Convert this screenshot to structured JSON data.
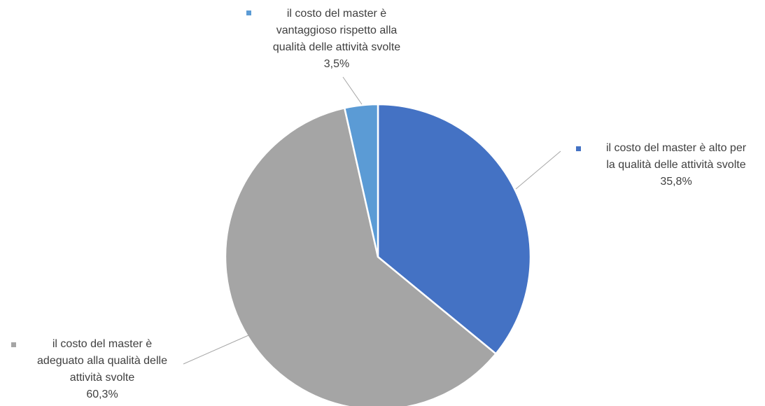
{
  "chart_data": {
    "type": "pie",
    "title": "",
    "slices": [
      {
        "label": "il costo del master è alto per la qualità delle attività svolte",
        "value": 35.8,
        "value_label": "35,8%",
        "color": "#4472C4"
      },
      {
        "label": "il costo del master è adeguato alla qualità delle attività svolte",
        "value": 60.3,
        "value_label": "60,3%",
        "color": "#A5A5A5"
      },
      {
        "label": "il costo del master è vantaggioso rispetto alla qualità delle attività svolte",
        "value": 3.5,
        "value_label": "3,5%",
        "color": "#5B9BD5"
      }
    ],
    "label_lines": [
      [
        "il costo del master è alto per",
        "la qualità delle attività svolte"
      ],
      [
        "il costo del master è",
        "adeguato alla qualità delle",
        "attività svolte"
      ],
      [
        "il costo del master è",
        "vantaggioso rispetto alla",
        "qualità delle attività svolte"
      ]
    ],
    "leader_color": "#A6A6A6",
    "text_color": "#404040"
  }
}
